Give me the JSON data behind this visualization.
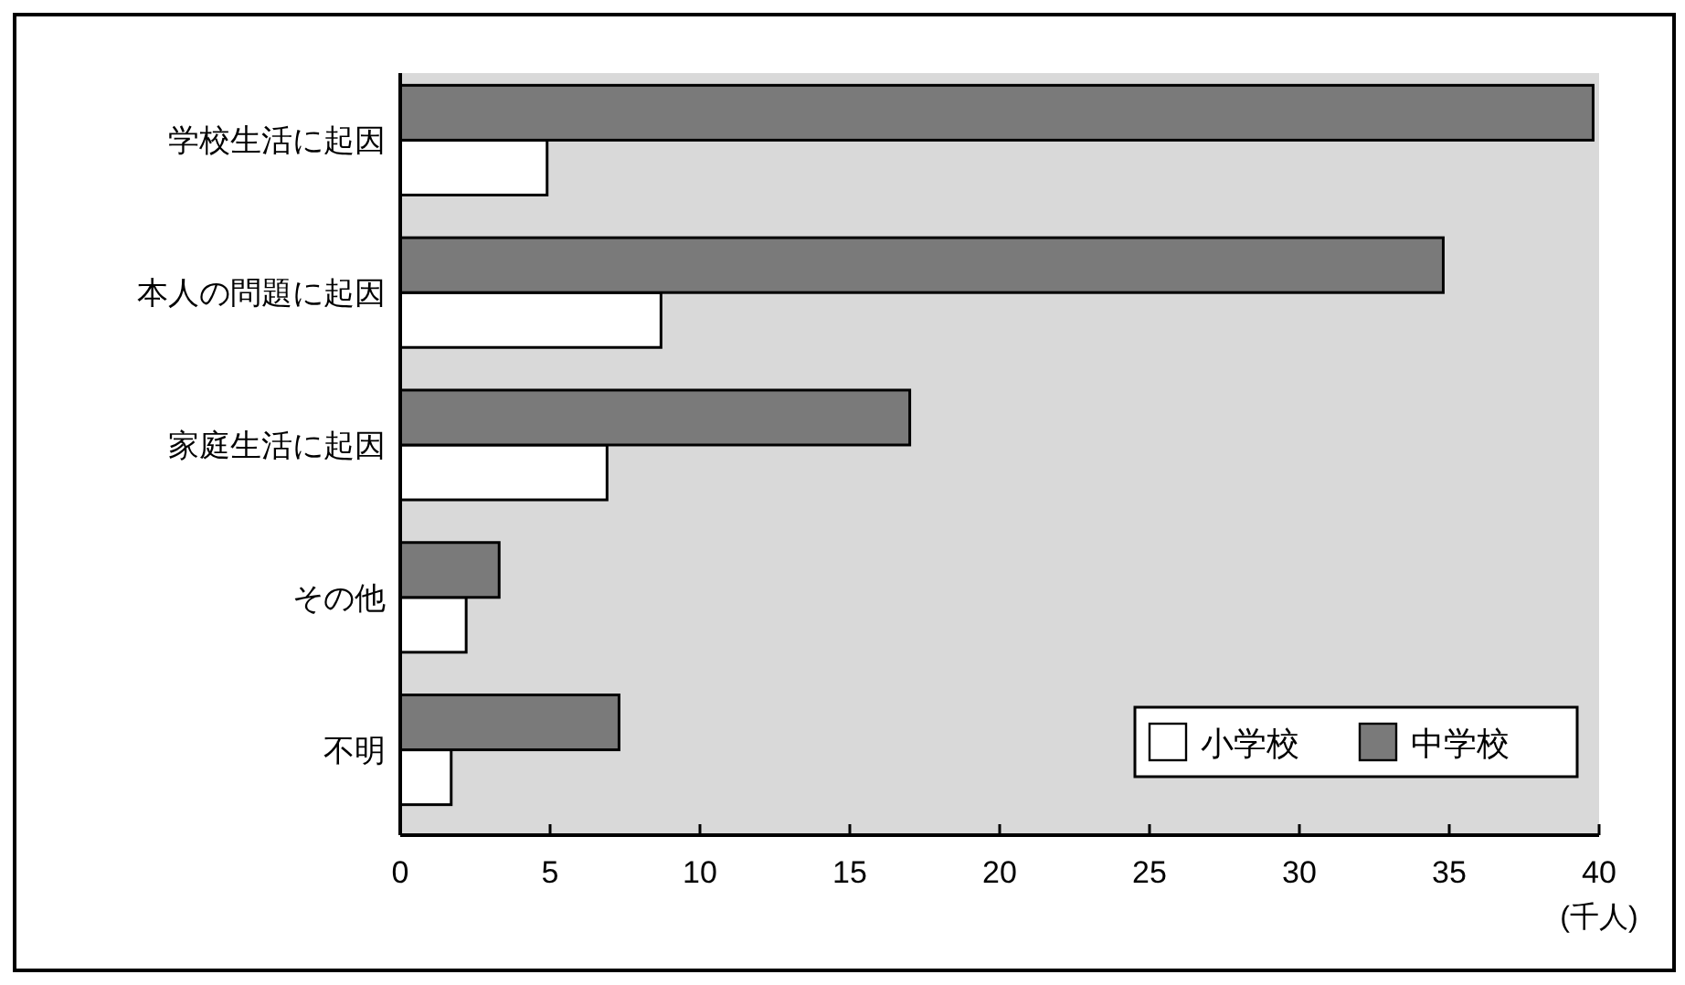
{
  "chart_data": {
    "type": "bar",
    "orientation": "horizontal",
    "xlabel": "(千人)",
    "categories": [
      "学校生活に起因",
      "本人の問題に起因",
      "家庭生活に起因",
      "その他",
      "不明"
    ],
    "series": [
      {
        "name": "小学校",
        "color": "#ffffff",
        "values": [
          4.9,
          8.7,
          6.9,
          2.2,
          1.7
        ]
      },
      {
        "name": "中学校",
        "color": "#7a7a7a",
        "values": [
          39.8,
          34.8,
          17.0,
          3.3,
          7.3
        ]
      }
    ],
    "xlim": [
      0,
      40
    ],
    "xticks": [
      0,
      5,
      10,
      15,
      20,
      25,
      30,
      35,
      40
    ],
    "grid": false,
    "legend": "bottom right"
  }
}
